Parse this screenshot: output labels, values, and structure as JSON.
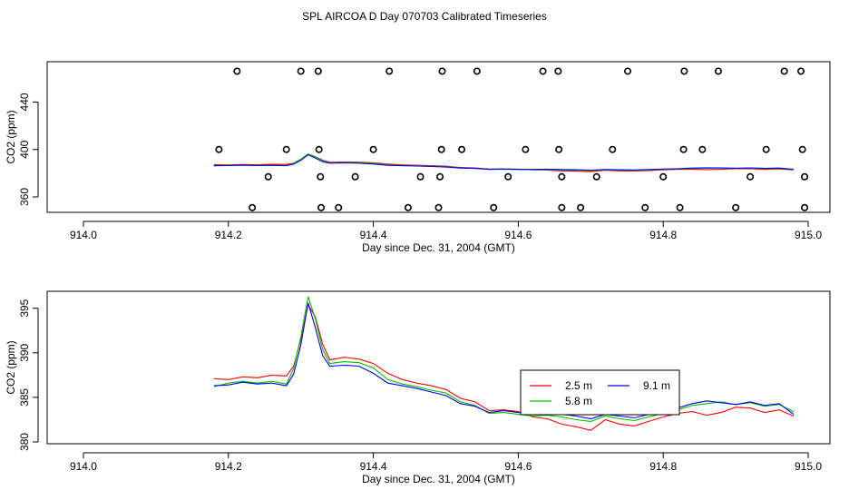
{
  "title": "SPL AIRCOA D  Day 070703  Calibrated Timeseries",
  "chart_data": [
    {
      "type": "line",
      "panel": "top",
      "xlabel": "Day since Dec. 31, 2004 (GMT)",
      "ylabel": "CO2 (ppm)",
      "xlim": [
        913.95,
        915.03
      ],
      "ylim": [
        347,
        474
      ],
      "xticks": [
        914.0,
        914.2,
        914.4,
        914.6,
        914.8,
        915.0
      ],
      "xtick_labels": [
        "914.0",
        "914.2",
        "914.4",
        "914.6",
        "914.8",
        "915.0"
      ],
      "yticks": [
        360,
        400,
        440
      ],
      "ytick_labels": [
        "360",
        "400",
        "440"
      ],
      "calibration_points": [
        {
          "x": 914.212,
          "y": 466
        },
        {
          "x": 914.3,
          "y": 466
        },
        {
          "x": 914.324,
          "y": 466
        },
        {
          "x": 914.422,
          "y": 466
        },
        {
          "x": 914.495,
          "y": 466
        },
        {
          "x": 914.543,
          "y": 466
        },
        {
          "x": 914.634,
          "y": 466
        },
        {
          "x": 914.655,
          "y": 466
        },
        {
          "x": 914.751,
          "y": 466
        },
        {
          "x": 914.829,
          "y": 466
        },
        {
          "x": 914.876,
          "y": 466
        },
        {
          "x": 914.967,
          "y": 466
        },
        {
          "x": 914.99,
          "y": 466
        },
        {
          "x": 914.187,
          "y": 400
        },
        {
          "x": 914.28,
          "y": 400
        },
        {
          "x": 914.325,
          "y": 400
        },
        {
          "x": 914.4,
          "y": 400
        },
        {
          "x": 914.494,
          "y": 400
        },
        {
          "x": 914.522,
          "y": 400
        },
        {
          "x": 914.61,
          "y": 400
        },
        {
          "x": 914.656,
          "y": 400
        },
        {
          "x": 914.73,
          "y": 400
        },
        {
          "x": 914.828,
          "y": 400
        },
        {
          "x": 914.854,
          "y": 400
        },
        {
          "x": 914.942,
          "y": 400
        },
        {
          "x": 914.992,
          "y": 400
        },
        {
          "x": 914.255,
          "y": 377
        },
        {
          "x": 914.327,
          "y": 377
        },
        {
          "x": 914.375,
          "y": 377
        },
        {
          "x": 914.465,
          "y": 377
        },
        {
          "x": 914.492,
          "y": 377
        },
        {
          "x": 914.586,
          "y": 377
        },
        {
          "x": 914.66,
          "y": 377
        },
        {
          "x": 914.708,
          "y": 377
        },
        {
          "x": 914.8,
          "y": 377
        },
        {
          "x": 914.92,
          "y": 377
        },
        {
          "x": 914.995,
          "y": 377
        },
        {
          "x": 914.233,
          "y": 351
        },
        {
          "x": 914.328,
          "y": 351
        },
        {
          "x": 914.352,
          "y": 351
        },
        {
          "x": 914.448,
          "y": 351
        },
        {
          "x": 914.49,
          "y": 351
        },
        {
          "x": 914.566,
          "y": 351
        },
        {
          "x": 914.66,
          "y": 351
        },
        {
          "x": 914.686,
          "y": 351
        },
        {
          "x": 914.775,
          "y": 351
        },
        {
          "x": 914.823,
          "y": 351
        },
        {
          "x": 914.9,
          "y": 351
        },
        {
          "x": 914.995,
          "y": 351
        }
      ],
      "series": [
        {
          "name": "2.5 m",
          "color": "#ff0000"
        },
        {
          "name": "5.8 m",
          "color": "#00c000"
        },
        {
          "name": "9.1 m",
          "color": "#0000ff"
        }
      ]
    },
    {
      "type": "line",
      "panel": "bottom",
      "xlabel": "Day since Dec. 31, 2004 (GMT)",
      "ylabel": "CO2 (ppm)",
      "xlim": [
        913.95,
        915.03
      ],
      "ylim": [
        379.8,
        396.9
      ],
      "xticks": [
        914.0,
        914.2,
        914.4,
        914.6,
        914.8,
        915.0
      ],
      "xtick_labels": [
        "914.0",
        "914.2",
        "914.4",
        "914.6",
        "914.8",
        "915.0"
      ],
      "yticks": [
        380,
        385,
        390,
        395
      ],
      "ytick_labels": [
        "380",
        "385",
        "390",
        "395"
      ],
      "legend": {
        "position": "center-right",
        "entries": [
          "2.5 m",
          "5.8 m",
          "9.1 m"
        ]
      },
      "series": [
        {
          "name": "2.5 m",
          "color": "#ff0000",
          "x": [
            914.18,
            914.2,
            914.22,
            914.24,
            914.26,
            914.28,
            914.29,
            914.3,
            914.31,
            914.32,
            914.33,
            914.34,
            914.36,
            914.38,
            914.4,
            914.42,
            914.44,
            914.46,
            914.48,
            914.5,
            914.52,
            914.54,
            914.56,
            914.58,
            914.6,
            914.62,
            914.64,
            914.66,
            914.68,
            914.7,
            914.72,
            914.74,
            914.76,
            914.78,
            914.8,
            914.82,
            914.84,
            914.86,
            914.88,
            914.9,
            914.92,
            914.94,
            914.96,
            914.98
          ],
          "values": [
            387.1,
            387.0,
            387.3,
            387.2,
            387.5,
            387.4,
            388.5,
            391.5,
            395.4,
            394.0,
            391.0,
            389.2,
            389.5,
            389.3,
            388.8,
            387.7,
            387.0,
            386.6,
            386.3,
            385.9,
            384.9,
            384.5,
            383.5,
            383.6,
            383.4,
            382.8,
            382.6,
            382.0,
            381.7,
            381.3,
            382.5,
            382.0,
            381.8,
            382.3,
            382.8,
            383.2,
            383.4,
            383.0,
            383.3,
            383.9,
            383.8,
            383.3,
            383.6,
            382.9
          ]
        },
        {
          "name": "5.8 m",
          "color": "#00c000",
          "x": [
            914.18,
            914.2,
            914.22,
            914.24,
            914.26,
            914.28,
            914.29,
            914.3,
            914.31,
            914.32,
            914.33,
            914.34,
            914.36,
            914.38,
            914.4,
            914.42,
            914.44,
            914.46,
            914.48,
            914.5,
            914.52,
            914.54,
            914.56,
            914.58,
            914.6,
            914.62,
            914.64,
            914.66,
            914.68,
            914.7,
            914.72,
            914.74,
            914.76,
            914.78,
            914.8,
            914.82,
            914.84,
            914.86,
            914.88,
            914.9,
            914.92,
            914.94,
            914.96,
            914.98
          ],
          "values": [
            386.2,
            386.6,
            386.8,
            386.6,
            386.8,
            386.5,
            388.2,
            391.8,
            396.3,
            393.8,
            390.4,
            388.8,
            389.0,
            388.9,
            388.3,
            387.0,
            386.5,
            386.2,
            385.8,
            385.5,
            384.5,
            384.1,
            383.2,
            383.3,
            383.1,
            382.9,
            383.0,
            382.8,
            382.5,
            382.3,
            382.9,
            382.6,
            382.4,
            382.8,
            383.2,
            383.6,
            384.1,
            384.3,
            384.5,
            384.2,
            384.4,
            384.0,
            384.2,
            383.4
          ]
        },
        {
          "name": "9.1 m",
          "color": "#0000ff",
          "x": [
            914.18,
            914.2,
            914.22,
            914.24,
            914.26,
            914.28,
            914.29,
            914.3,
            914.31,
            914.32,
            914.33,
            914.34,
            914.36,
            914.38,
            914.4,
            914.42,
            914.44,
            914.46,
            914.48,
            914.5,
            914.52,
            914.54,
            914.56,
            914.58,
            914.6,
            914.62,
            914.64,
            914.66,
            914.68,
            914.7,
            914.72,
            914.74,
            914.76,
            914.78,
            914.8,
            914.82,
            914.84,
            914.86,
            914.88,
            914.9,
            914.92,
            914.94,
            914.96,
            914.98
          ],
          "values": [
            386.3,
            386.4,
            386.7,
            386.5,
            386.6,
            386.3,
            387.6,
            390.9,
            395.6,
            392.8,
            389.7,
            388.5,
            388.6,
            388.5,
            387.7,
            386.6,
            386.3,
            386.0,
            385.6,
            385.2,
            384.3,
            384.0,
            383.3,
            383.5,
            383.3,
            383.2,
            383.4,
            383.1,
            382.9,
            382.6,
            383.1,
            382.9,
            382.7,
            383.1,
            383.5,
            383.8,
            384.3,
            384.6,
            384.4,
            384.2,
            384.5,
            384.1,
            384.3,
            383.1
          ]
        }
      ]
    }
  ]
}
